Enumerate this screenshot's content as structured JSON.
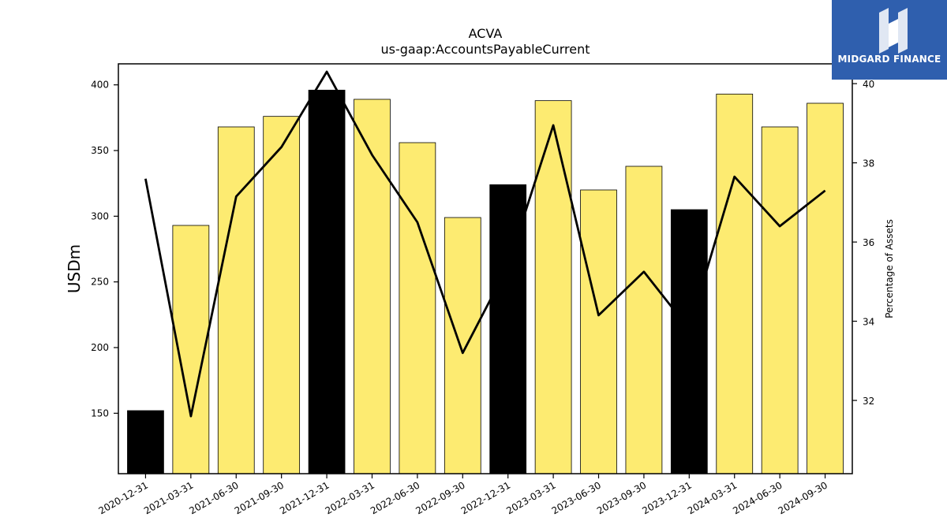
{
  "brand": {
    "name": "MIDGARD FINANCE",
    "logo_icon": "midgard-logo-icon",
    "color": "#2f5fae"
  },
  "chart_data": {
    "type": "bar",
    "title": "ACVA",
    "subtitle": "us-gaap:AccountsPayableCurrent",
    "ylabel": "USDm",
    "y2label": "Percentage of Assets",
    "categories": [
      "2020-12-31",
      "2021-03-31",
      "2021-06-30",
      "2021-09-30",
      "2021-12-31",
      "2022-03-31",
      "2022-06-30",
      "2022-09-30",
      "2022-12-31",
      "2023-03-31",
      "2023-06-30",
      "2023-09-30",
      "2023-12-31",
      "2024-03-31",
      "2024-06-30",
      "2024-09-30"
    ],
    "series": [
      {
        "type": "bar",
        "values": [
          152,
          293,
          368,
          376,
          396,
          389,
          356,
          299,
          324,
          388,
          320,
          338,
          305,
          393,
          368,
          386
        ],
        "highlight": [
          true,
          false,
          false,
          false,
          true,
          false,
          false,
          false,
          true,
          false,
          false,
          false,
          true,
          false,
          false,
          false
        ],
        "color": "#fdeb71",
        "highlight_color": "#000000"
      },
      {
        "type": "line",
        "axis": "right",
        "values": [
          37.6,
          31.6,
          37.15,
          38.4,
          40.3,
          38.2,
          36.5,
          33.2,
          35.4,
          38.95,
          34.15,
          35.25,
          33.8,
          37.65,
          36.4,
          37.3
        ],
        "color": "#000000"
      }
    ],
    "ylim": [
      104,
      416
    ],
    "yticks": [
      150,
      200,
      250,
      300,
      350,
      400
    ],
    "y2lim": [
      30.15,
      40.5
    ],
    "y2ticks": [
      32,
      34,
      36,
      38,
      40
    ],
    "grid": false,
    "x_tick_rotation": 30
  }
}
